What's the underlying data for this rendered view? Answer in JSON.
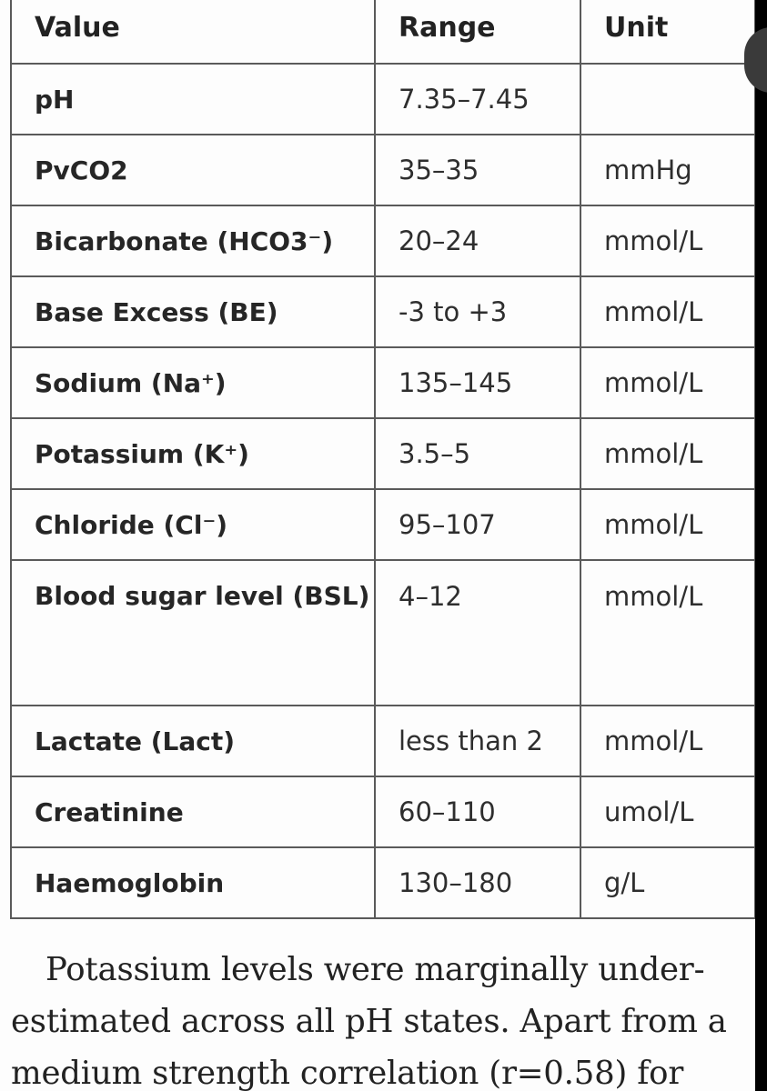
{
  "table": {
    "headers": {
      "value": "Value",
      "range": "Range",
      "unit": "Unit"
    },
    "rows": [
      {
        "value": "pH",
        "range": "7.35–7.45",
        "unit": ""
      },
      {
        "value": "PvCO2",
        "range": "35–35",
        "unit": "mmHg"
      },
      {
        "value": "Bicarbonate (HCO3⁻)",
        "range": "20–24",
        "unit": "mmol/L"
      },
      {
        "value": "Base Excess (BE)",
        "range": "-3 to +3",
        "unit": "mmol/L"
      },
      {
        "value": "Sodium (Na⁺)",
        "range": "135–145",
        "unit": "mmol/L"
      },
      {
        "value": "Potassium (K⁺)",
        "range": "3.5–5",
        "unit": "mmol/L"
      },
      {
        "value": "Chloride (Cl⁻)",
        "range": "95–107",
        "unit": "mmol/L"
      },
      {
        "value": "Blood sugar level (BSL)",
        "range": "4–12",
        "unit": "mmol/L"
      },
      {
        "value": "Lactate (Lact)",
        "range": "less than 2",
        "unit": "mmol/L"
      },
      {
        "value": "Creatinine",
        "range": "60–110",
        "unit": "umol/L"
      },
      {
        "value": "Haemoglobin",
        "range": "130–180",
        "unit": "g/L"
      }
    ]
  },
  "paragraph": "Potassium levels were marginally under-estimated across all pH states. Apart from a medium strength correlation (r=0.58) for"
}
